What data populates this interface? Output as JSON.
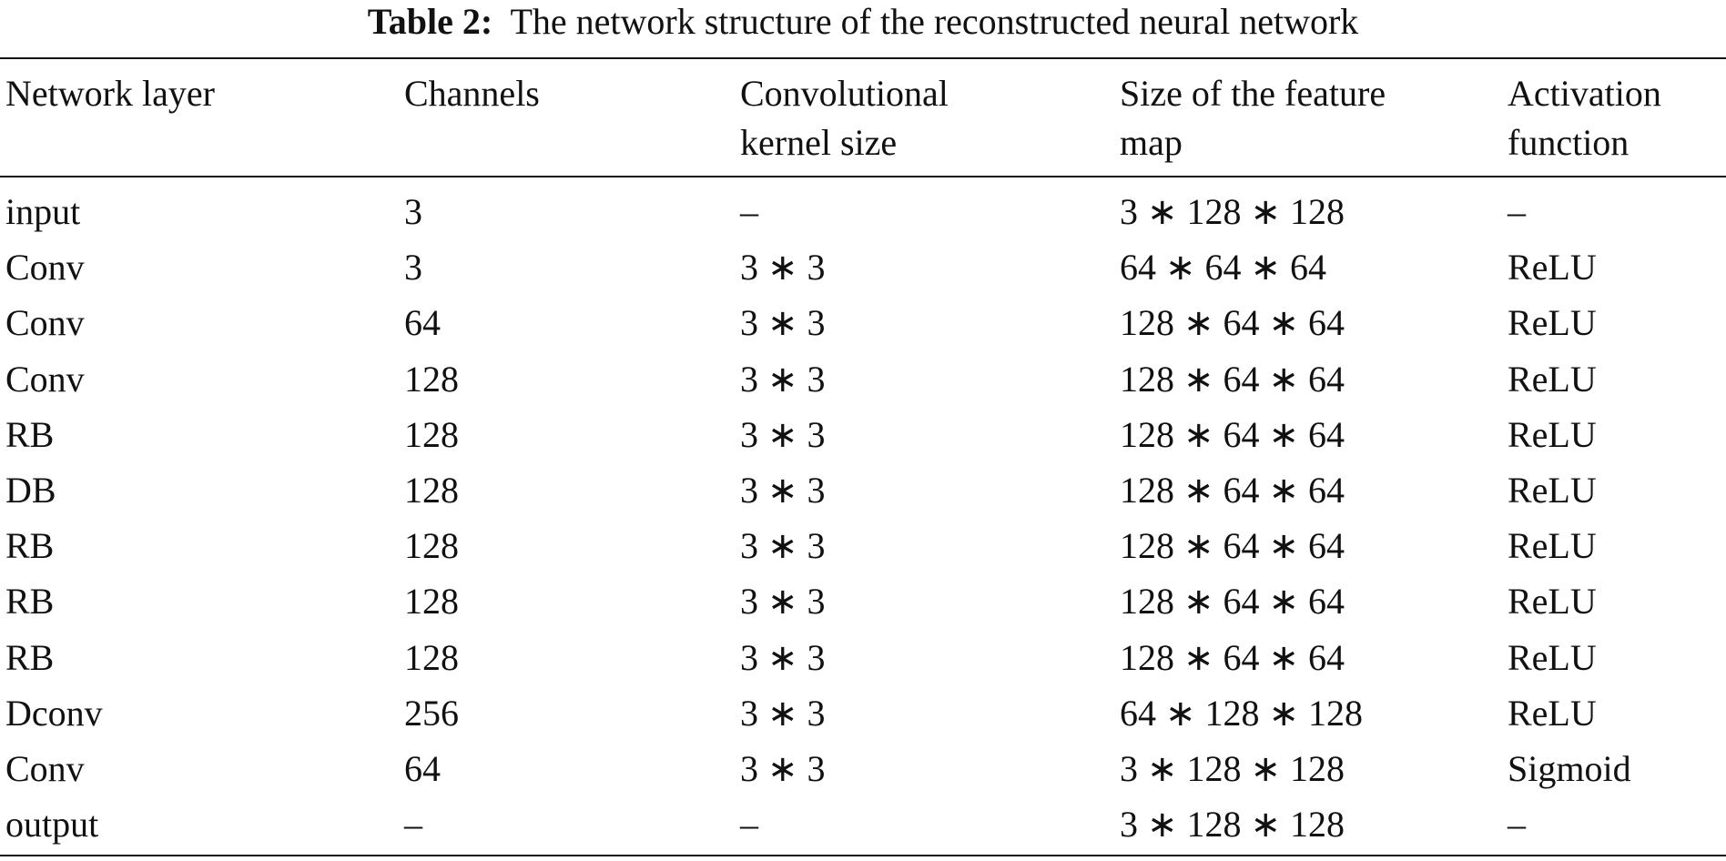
{
  "caption": {
    "label": "Table 2:",
    "text": "The network structure of the reconstructed neural network"
  },
  "table": {
    "headers": [
      [
        "Network layer"
      ],
      [
        "Channels"
      ],
      [
        "Convolutional",
        "kernel size"
      ],
      [
        "Size of the feature",
        "map"
      ],
      [
        "Activation",
        "function"
      ]
    ],
    "rows": [
      [
        "input",
        "3",
        "–",
        "3 ∗ 128 ∗ 128",
        "–"
      ],
      [
        "Conv",
        "3",
        "3 ∗ 3",
        "64 ∗ 64 ∗ 64",
        "ReLU"
      ],
      [
        "Conv",
        "64",
        "3 ∗ 3",
        "128 ∗ 64 ∗ 64",
        "ReLU"
      ],
      [
        "Conv",
        "128",
        "3 ∗ 3",
        "128 ∗ 64 ∗ 64",
        "ReLU"
      ],
      [
        "RB",
        "128",
        "3 ∗ 3",
        "128 ∗ 64 ∗ 64",
        "ReLU"
      ],
      [
        "DB",
        "128",
        "3 ∗ 3",
        "128 ∗ 64 ∗ 64",
        "ReLU"
      ],
      [
        "RB",
        "128",
        "3 ∗ 3",
        "128 ∗ 64 ∗ 64",
        "ReLU"
      ],
      [
        "RB",
        "128",
        "3 ∗ 3",
        "128 ∗ 64 ∗ 64",
        "ReLU"
      ],
      [
        "RB",
        "128",
        "3 ∗ 3",
        "128 ∗ 64 ∗ 64",
        "ReLU"
      ],
      [
        "Dconv",
        "256",
        "3 ∗ 3",
        "64 ∗ 128 ∗ 128",
        "ReLU"
      ],
      [
        "Conv",
        "64",
        "3 ∗ 3",
        "3 ∗ 128 ∗ 128",
        "Sigmoid"
      ],
      [
        "output",
        "–",
        "–",
        "3 ∗ 128 ∗ 128",
        "–"
      ]
    ]
  }
}
